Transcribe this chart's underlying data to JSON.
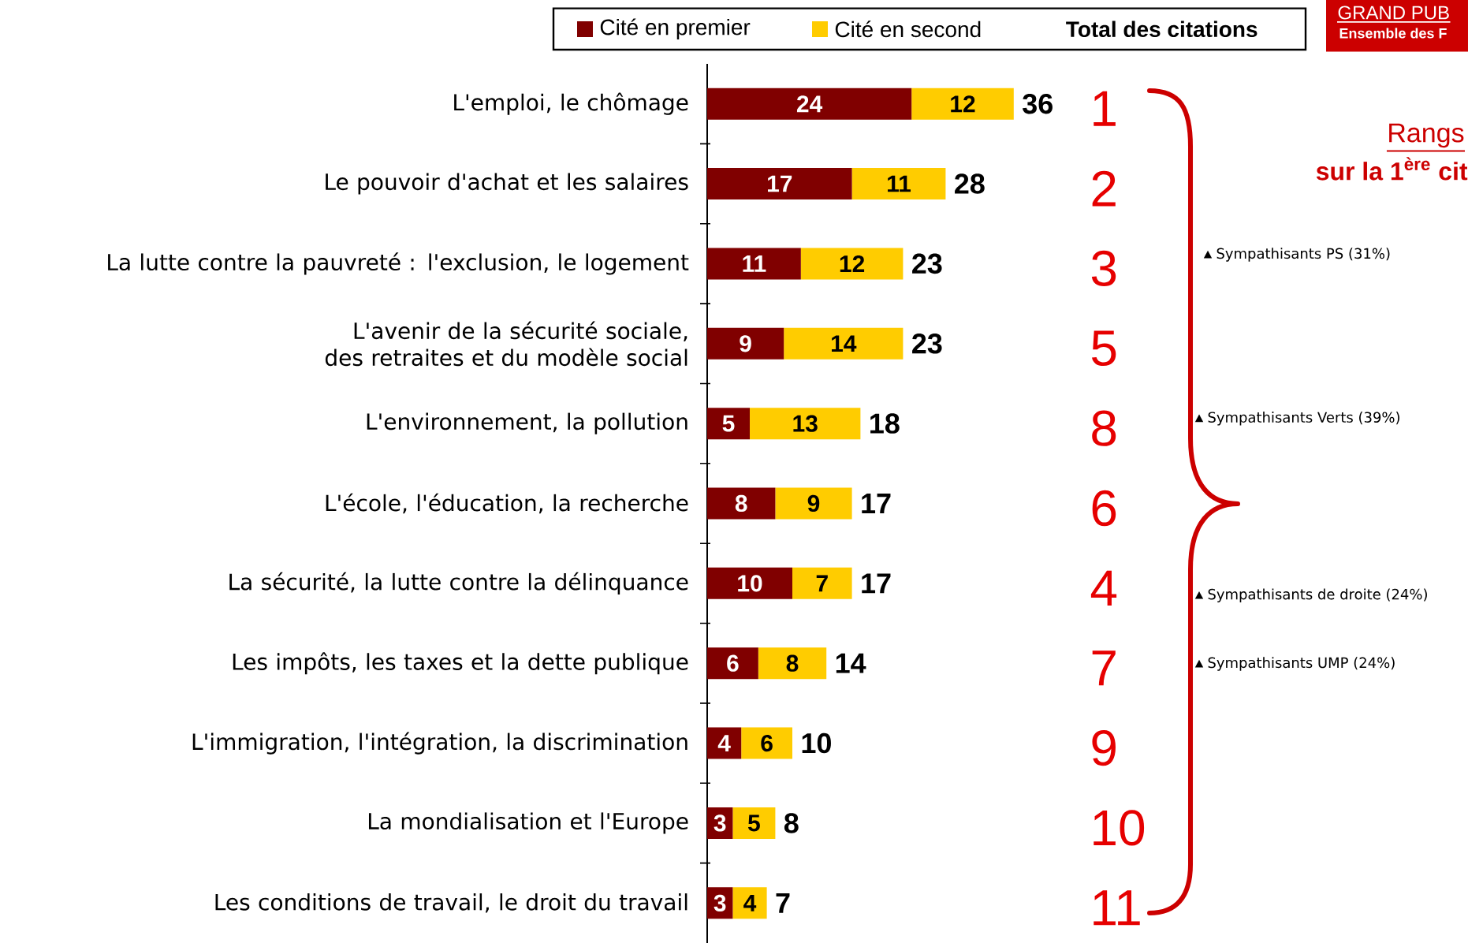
{
  "chart_data": {
    "type": "bar",
    "orientation": "horizontal",
    "stacked": true,
    "data_labels": true,
    "legend": "top",
    "categories": [
      "L'emploi, le chômage",
      "Le pouvoir d'achat et les salaires",
      "La lutte contre la pauvreté : l'exclusion, le logement",
      "L'avenir de la sécurité sociale, des retraites et du modèle social",
      "L'environnement, la pollution",
      "L'école, l'éducation, la recherche",
      "La sécurité, la lutte contre la délinquance",
      "Les impôts, les taxes et la dette publique",
      "L'immigration, l'intégration, la discrimination",
      "La mondialisation et l'Europe",
      "Les conditions de travail, le droit du travail"
    ],
    "series": [
      {
        "name": "Cité en premier",
        "color": "#800000",
        "values": [
          24,
          17,
          11,
          9,
          5,
          8,
          10,
          6,
          4,
          3,
          3
        ]
      },
      {
        "name": "Cité en second",
        "color": "#ffcc00",
        "values": [
          12,
          11,
          12,
          14,
          13,
          9,
          7,
          8,
          6,
          5,
          4
        ]
      }
    ],
    "totals": [
      "36",
      "28",
      "23",
      "23",
      "18",
      "17",
      "17",
      "14",
      "10",
      "8",
      "7"
    ],
    "annotations": [
      "1",
      "2",
      "3",
      "5",
      "8",
      "6",
      "4",
      "7",
      "9",
      "10",
      "11",
      "Total des citations",
      "Sympathisants PS (31%)",
      "Sympathisants Verts (39%)",
      "Sympathisants de droite (24%)",
      "Sympathisants UMP (24%)",
      "Rangs",
      "sur la 1$^{ère}$ cit",
      "GRAND PUB",
      "Ensemble des F"
    ]
  }
}
